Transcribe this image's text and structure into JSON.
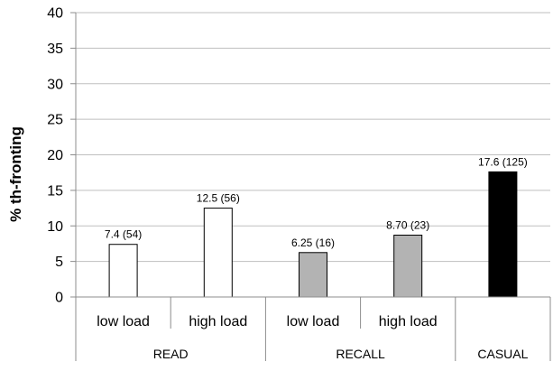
{
  "chart_data": {
    "type": "bar",
    "ylabel": "% th-fronting",
    "ylim": [
      0,
      40
    ],
    "yticks": [
      "0",
      "5",
      "10",
      "15",
      "20",
      "25",
      "30",
      "35",
      "40"
    ],
    "grid": true,
    "bars": [
      {
        "category": "low load",
        "group": "READ",
        "value": 7.4,
        "label": "7.4 (54)",
        "fill": "#ffffff"
      },
      {
        "category": "high load",
        "group": "READ",
        "value": 12.5,
        "label": "12.5 (56)",
        "fill": "#ffffff"
      },
      {
        "category": "low load",
        "group": "RECALL",
        "value": 6.25,
        "label": "6.25 (16)",
        "fill": "#b3b3b3"
      },
      {
        "category": "high load",
        "group": "RECALL",
        "value": 8.7,
        "label": "8.70 (23)",
        "fill": "#b3b3b3"
      },
      {
        "category": "",
        "group": "CASUAL",
        "value": 17.6,
        "label": "17.6 (125)",
        "fill": "#000000"
      }
    ],
    "groups": [
      "READ",
      "RECALL",
      "CASUAL"
    ]
  }
}
